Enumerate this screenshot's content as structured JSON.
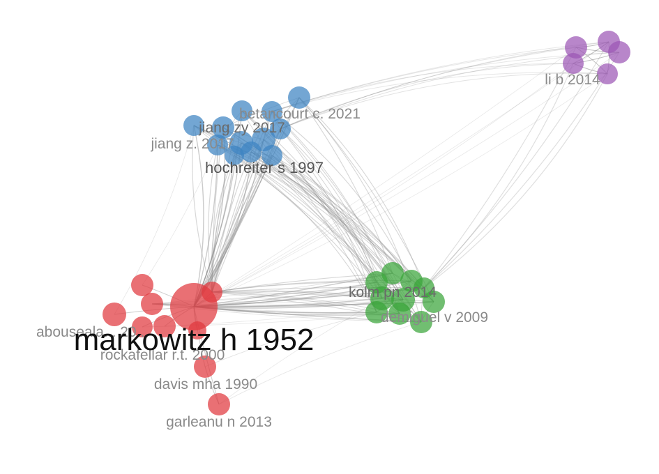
{
  "clusters": {
    "red": {
      "color": "#e0393e"
    },
    "blue": {
      "color": "#3d84c2"
    },
    "green": {
      "color": "#3aa53a"
    },
    "purple": {
      "color": "#9c58b6"
    }
  },
  "labels": {
    "markowitz": "markowitz h 1952",
    "hochreiter": "hochreiter s 1997",
    "jiang_zy": "jiang zy 2017",
    "jiang_z": "jiang z. 2017",
    "betancourt": "betancourt c. 2021",
    "kolm": "kolm pn 2014",
    "demiguel": "demiguel v 2009",
    "li_b": "li b 2014",
    "abouseala": "abouseala... 20...",
    "rockafellar": "rockafellar r.t. 2000",
    "davis": "davis mha 1990",
    "garleanu": "garleanu n 2013"
  }
}
